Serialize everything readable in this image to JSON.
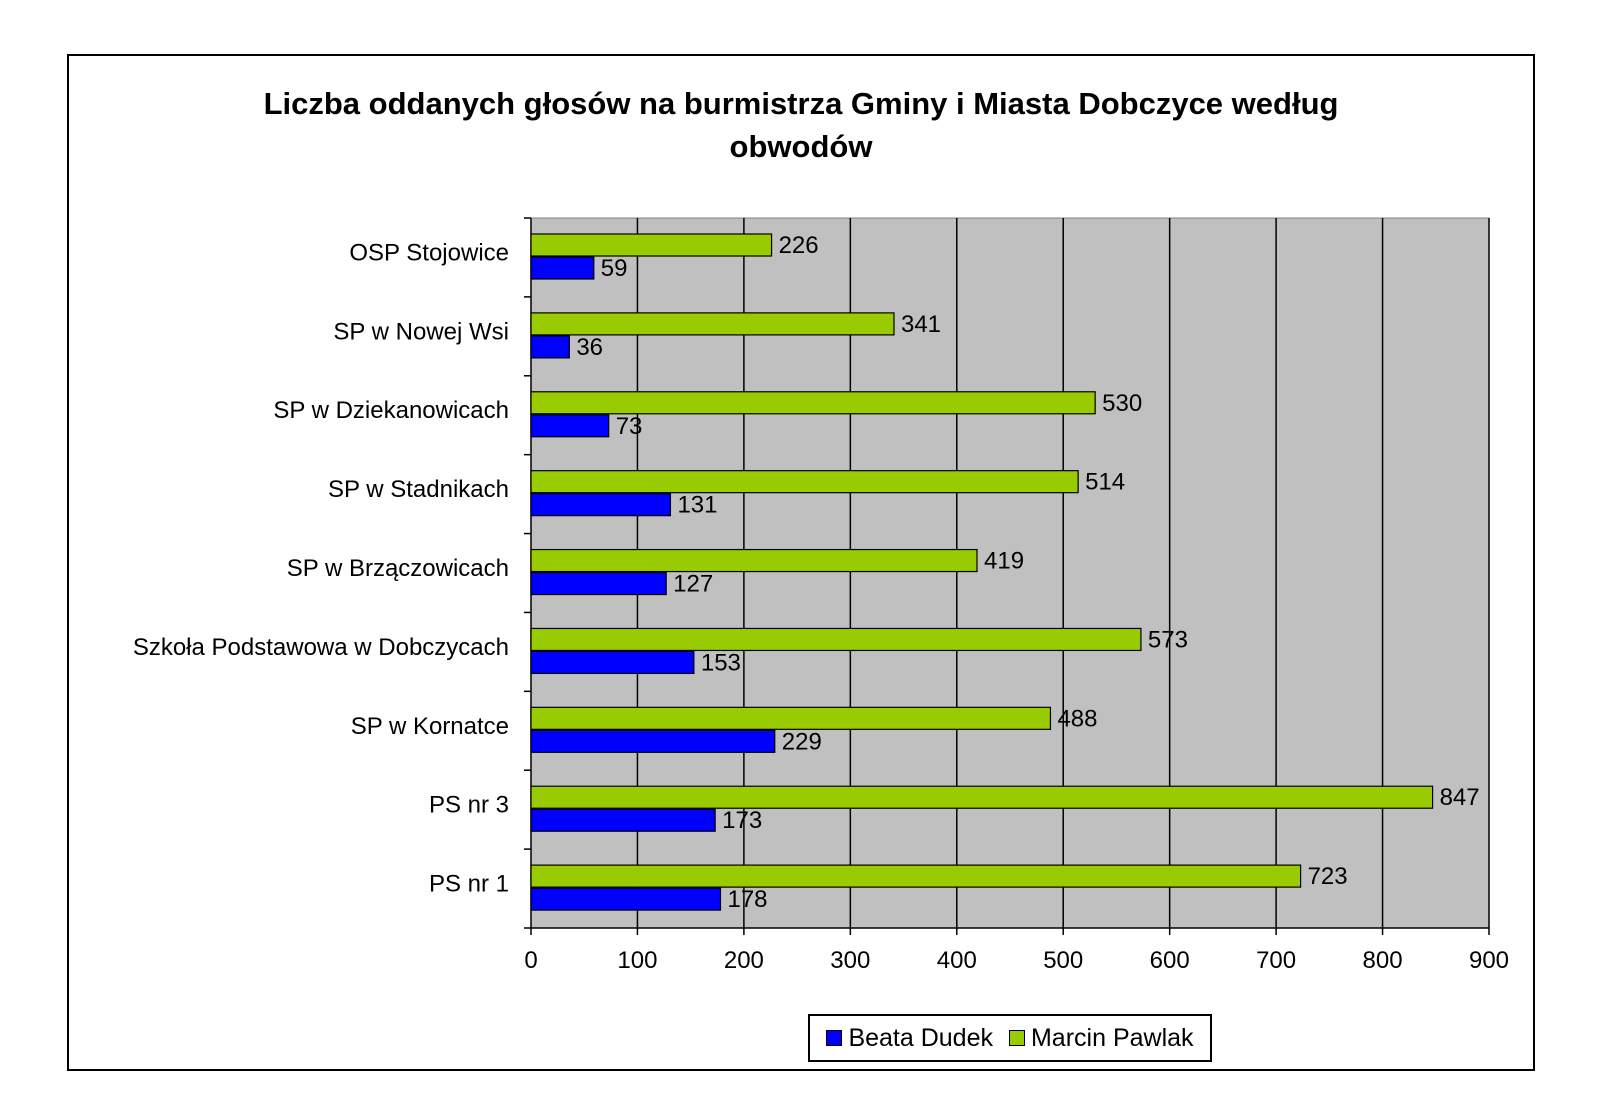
{
  "chart_data": {
    "type": "bar",
    "orientation": "horizontal",
    "title": "Liczba oddanych głosów na burmistrza Gminy i Miasta Dobczyce według obwodów",
    "title_lines": [
      "Liczba oddanych głosów na burmistrza Gminy i Miasta Dobczyce według",
      "obwodów"
    ],
    "categories": [
      "OSP Stojowice",
      "SP w Nowej Wsi",
      "SP w Dziekanowicach",
      "SP w Stadnikach",
      "SP w Brzączowicach",
      "Szkoła Podstawowa w Dobczycach",
      "SP w Kornatce",
      "PS nr 3",
      "PS nr 1"
    ],
    "series": [
      {
        "name": "Beata Dudek",
        "color": "#0000FF",
        "values": [
          59,
          36,
          73,
          131,
          127,
          153,
          229,
          173,
          178
        ]
      },
      {
        "name": "Marcin Pawlak",
        "color": "#99CC00",
        "values": [
          226,
          341,
          530,
          514,
          419,
          573,
          488,
          847,
          723
        ]
      }
    ],
    "xlim": [
      0,
      900
    ],
    "xticks": [
      "0",
      "100",
      "200",
      "300",
      "400",
      "500",
      "600",
      "700",
      "800",
      "900"
    ],
    "grid": "vertical",
    "plot_background": "#C0C0C0",
    "legend_position": "bottom",
    "data_labels": true
  }
}
